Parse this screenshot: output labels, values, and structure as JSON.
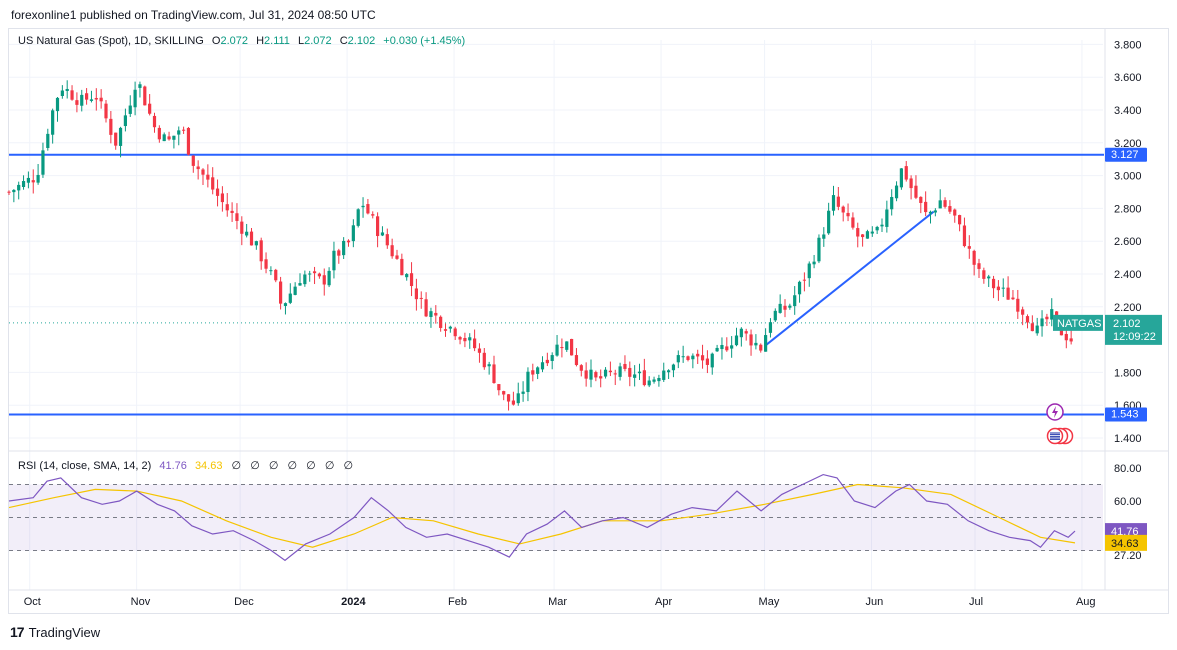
{
  "publisher_line": "forexonline1 published on TradingView.com, Jul 31, 2024 08:50 UTC",
  "footer": {
    "logo_glyph": "17",
    "brand": "TradingView"
  },
  "legend": {
    "symbol": "US Natural Gas (Spot), 1D, SKILLING",
    "o_label": "O",
    "o": "2.072",
    "h_label": "H",
    "h": "2.111",
    "l_label": "L",
    "l": "2.072",
    "c_label": "C",
    "c": "2.102",
    "change": "+0.030 (+1.45%)"
  },
  "rsi_legend": {
    "label": "RSI (14, close, SMA, 14, 2)",
    "rsi": "41.76",
    "sma": "34.63",
    "na": [
      "∅",
      "∅",
      "∅",
      "∅",
      "∅",
      "∅",
      "∅"
    ]
  },
  "colors": {
    "up": "#089981",
    "down": "#f23645",
    "line": "#2962ff",
    "rsi": "#7e57c2",
    "rsi_sma": "#f5c400",
    "badge": "#26a69a"
  },
  "chart_data": [
    {
      "type": "candlestick",
      "title": "US Natural Gas (Spot), 1D, SKILLING",
      "x_ticks": [
        "Oct",
        "Nov",
        "Dec",
        "2024",
        "Feb",
        "Mar",
        "Apr",
        "May",
        "Jun",
        "Jul",
        "Aug"
      ],
      "y_ticks": [
        "3.800",
        "3.600",
        "3.400",
        "3.200",
        "3.000",
        "2.800",
        "2.600",
        "2.400",
        "2.200",
        "1.800",
        "1.600",
        "1.400"
      ],
      "ylim": [
        1.4,
        3.8
      ],
      "horizontal_levels": [
        {
          "label": "3.127",
          "value": 3.127
        },
        {
          "label": "1.543",
          "value": 1.543
        }
      ],
      "trendline": {
        "from": {
          "date": "2024-05-01",
          "value": 1.96
        },
        "to": {
          "date": "2024-06-19",
          "value": 2.78
        }
      },
      "last_price": {
        "symbol": "NATGAS",
        "value": "2.102",
        "countdown": "12:09:22",
        "level": 2.102
      },
      "trend_points": [
        [
          "2023-09-25",
          2.9
        ],
        [
          "2023-10-03",
          3.0
        ],
        [
          "2023-10-07",
          3.35
        ],
        [
          "2023-10-10",
          3.55
        ],
        [
          "2023-10-16",
          3.45
        ],
        [
          "2023-10-20",
          3.5
        ],
        [
          "2023-10-26",
          3.2
        ],
        [
          "2023-10-30",
          3.45
        ],
        [
          "2023-11-01",
          3.6
        ],
        [
          "2023-11-06",
          3.3
        ],
        [
          "2023-11-10",
          3.2
        ],
        [
          "2023-11-14",
          3.3
        ],
        [
          "2023-11-17",
          3.1
        ],
        [
          "2023-11-22",
          2.95
        ],
        [
          "2023-11-27",
          2.8
        ],
        [
          "2023-12-01",
          2.7
        ],
        [
          "2023-12-06",
          2.55
        ],
        [
          "2023-12-11",
          2.35
        ],
        [
          "2023-12-13",
          2.2
        ],
        [
          "2023-12-19",
          2.4
        ],
        [
          "2023-12-25",
          2.35
        ],
        [
          "2023-12-28",
          2.5
        ],
        [
          "2024-01-02",
          2.6
        ],
        [
          "2024-01-05",
          2.85
        ],
        [
          "2024-01-09",
          2.7
        ],
        [
          "2024-01-12",
          2.6
        ],
        [
          "2024-01-18",
          2.4
        ],
        [
          "2024-01-23",
          2.2
        ],
        [
          "2024-01-29",
          2.1
        ],
        [
          "2024-02-02",
          2.05
        ],
        [
          "2024-02-07",
          1.95
        ],
        [
          "2024-02-12",
          1.8
        ],
        [
          "2024-02-15",
          1.65
        ],
        [
          "2024-02-19",
          1.6
        ],
        [
          "2024-02-23",
          1.8
        ],
        [
          "2024-02-28",
          1.9
        ],
        [
          "2024-03-04",
          2.0
        ],
        [
          "2024-03-08",
          1.85
        ],
        [
          "2024-03-13",
          1.75
        ],
        [
          "2024-03-19",
          1.8
        ],
        [
          "2024-03-25",
          1.78
        ],
        [
          "2024-03-29",
          1.75
        ],
        [
          "2024-04-03",
          1.85
        ],
        [
          "2024-04-09",
          1.9
        ],
        [
          "2024-04-15",
          1.85
        ],
        [
          "2024-04-19",
          1.95
        ],
        [
          "2024-04-24",
          2.05
        ],
        [
          "2024-04-30",
          1.95
        ],
        [
          "2024-05-03",
          2.15
        ],
        [
          "2024-05-08",
          2.2
        ],
        [
          "2024-05-13",
          2.4
        ],
        [
          "2024-05-17",
          2.6
        ],
        [
          "2024-05-21",
          2.85
        ],
        [
          "2024-05-24",
          2.75
        ],
        [
          "2024-05-29",
          2.6
        ],
        [
          "2024-06-03",
          2.65
        ],
        [
          "2024-06-06",
          2.85
        ],
        [
          "2024-06-10",
          3.05
        ],
        [
          "2024-06-13",
          2.9
        ],
        [
          "2024-06-17",
          2.75
        ],
        [
          "2024-06-21",
          2.85
        ],
        [
          "2024-06-25",
          2.75
        ],
        [
          "2024-06-28",
          2.6
        ],
        [
          "2024-07-02",
          2.4
        ],
        [
          "2024-07-08",
          2.3
        ],
        [
          "2024-07-12",
          2.25
        ],
        [
          "2024-07-16",
          2.15
        ],
        [
          "2024-07-19",
          2.05
        ],
        [
          "2024-07-23",
          2.15
        ],
        [
          "2024-07-26",
          2.05
        ],
        [
          "2024-07-29",
          2.0
        ],
        [
          "2024-07-30",
          2.1
        ]
      ]
    },
    {
      "type": "line",
      "title": "RSI (14, close, SMA, 14, 2)",
      "y_ticks": [
        "80.00",
        "60.00",
        "40.90",
        "27.20"
      ],
      "ylim": [
        27.2,
        80.0
      ],
      "bands": {
        "upper": 70,
        "middle": 50,
        "lower": 30
      },
      "last_values": {
        "rsi": "41.76",
        "sma": "34.63",
        "rsi_level": 41.76,
        "sma_level": 34.63
      },
      "rsi_points": [
        [
          "2023-09-25",
          60
        ],
        [
          "2023-10-02",
          62
        ],
        [
          "2023-10-06",
          72
        ],
        [
          "2023-10-10",
          74
        ],
        [
          "2023-10-16",
          62
        ],
        [
          "2023-10-22",
          58
        ],
        [
          "2023-10-27",
          60
        ],
        [
          "2023-11-01",
          66
        ],
        [
          "2023-11-07",
          58
        ],
        [
          "2023-11-12",
          54
        ],
        [
          "2023-11-17",
          45
        ],
        [
          "2023-11-23",
          40
        ],
        [
          "2023-11-29",
          42
        ],
        [
          "2023-12-05",
          36
        ],
        [
          "2023-12-10",
          30
        ],
        [
          "2023-12-14",
          24
        ],
        [
          "2023-12-20",
          34
        ],
        [
          "2023-12-27",
          40
        ],
        [
          "2024-01-03",
          50
        ],
        [
          "2024-01-08",
          62
        ],
        [
          "2024-01-13",
          54
        ],
        [
          "2024-01-18",
          44
        ],
        [
          "2024-01-24",
          38
        ],
        [
          "2024-01-30",
          40
        ],
        [
          "2024-02-05",
          36
        ],
        [
          "2024-02-11",
          32
        ],
        [
          "2024-02-17",
          26
        ],
        [
          "2024-02-22",
          40
        ],
        [
          "2024-02-28",
          46
        ],
        [
          "2024-03-04",
          54
        ],
        [
          "2024-03-09",
          44
        ],
        [
          "2024-03-15",
          48
        ],
        [
          "2024-03-21",
          50
        ],
        [
          "2024-03-28",
          44
        ],
        [
          "2024-04-04",
          52
        ],
        [
          "2024-04-10",
          56
        ],
        [
          "2024-04-17",
          54
        ],
        [
          "2024-04-23",
          66
        ],
        [
          "2024-04-30",
          54
        ],
        [
          "2024-05-06",
          64
        ],
        [
          "2024-05-12",
          70
        ],
        [
          "2024-05-18",
          76
        ],
        [
          "2024-05-22",
          74
        ],
        [
          "2024-05-27",
          60
        ],
        [
          "2024-06-02",
          56
        ],
        [
          "2024-06-08",
          66
        ],
        [
          "2024-06-12",
          70
        ],
        [
          "2024-06-17",
          60
        ],
        [
          "2024-06-23",
          58
        ],
        [
          "2024-06-29",
          48
        ],
        [
          "2024-07-05",
          42
        ],
        [
          "2024-07-11",
          38
        ],
        [
          "2024-07-17",
          36
        ],
        [
          "2024-07-20",
          32
        ],
        [
          "2024-07-24",
          42
        ],
        [
          "2024-07-28",
          38
        ],
        [
          "2024-07-30",
          41.76
        ]
      ],
      "sma_points": [
        [
          "2023-09-25",
          56
        ],
        [
          "2023-10-08",
          62
        ],
        [
          "2023-10-20",
          67
        ],
        [
          "2023-11-01",
          66
        ],
        [
          "2023-11-14",
          60
        ],
        [
          "2023-11-27",
          48
        ],
        [
          "2023-12-10",
          38
        ],
        [
          "2023-12-22",
          32
        ],
        [
          "2024-01-03",
          40
        ],
        [
          "2024-01-14",
          50
        ],
        [
          "2024-01-26",
          48
        ],
        [
          "2024-02-08",
          40
        ],
        [
          "2024-02-20",
          34
        ],
        [
          "2024-03-03",
          40
        ],
        [
          "2024-03-15",
          48
        ],
        [
          "2024-04-01",
          48
        ],
        [
          "2024-04-15",
          52
        ],
        [
          "2024-05-01",
          58
        ],
        [
          "2024-05-15",
          64
        ],
        [
          "2024-05-28",
          70
        ],
        [
          "2024-06-10",
          68
        ],
        [
          "2024-06-24",
          64
        ],
        [
          "2024-07-08",
          50
        ],
        [
          "2024-07-20",
          38
        ],
        [
          "2024-07-30",
          34.63
        ]
      ]
    }
  ]
}
